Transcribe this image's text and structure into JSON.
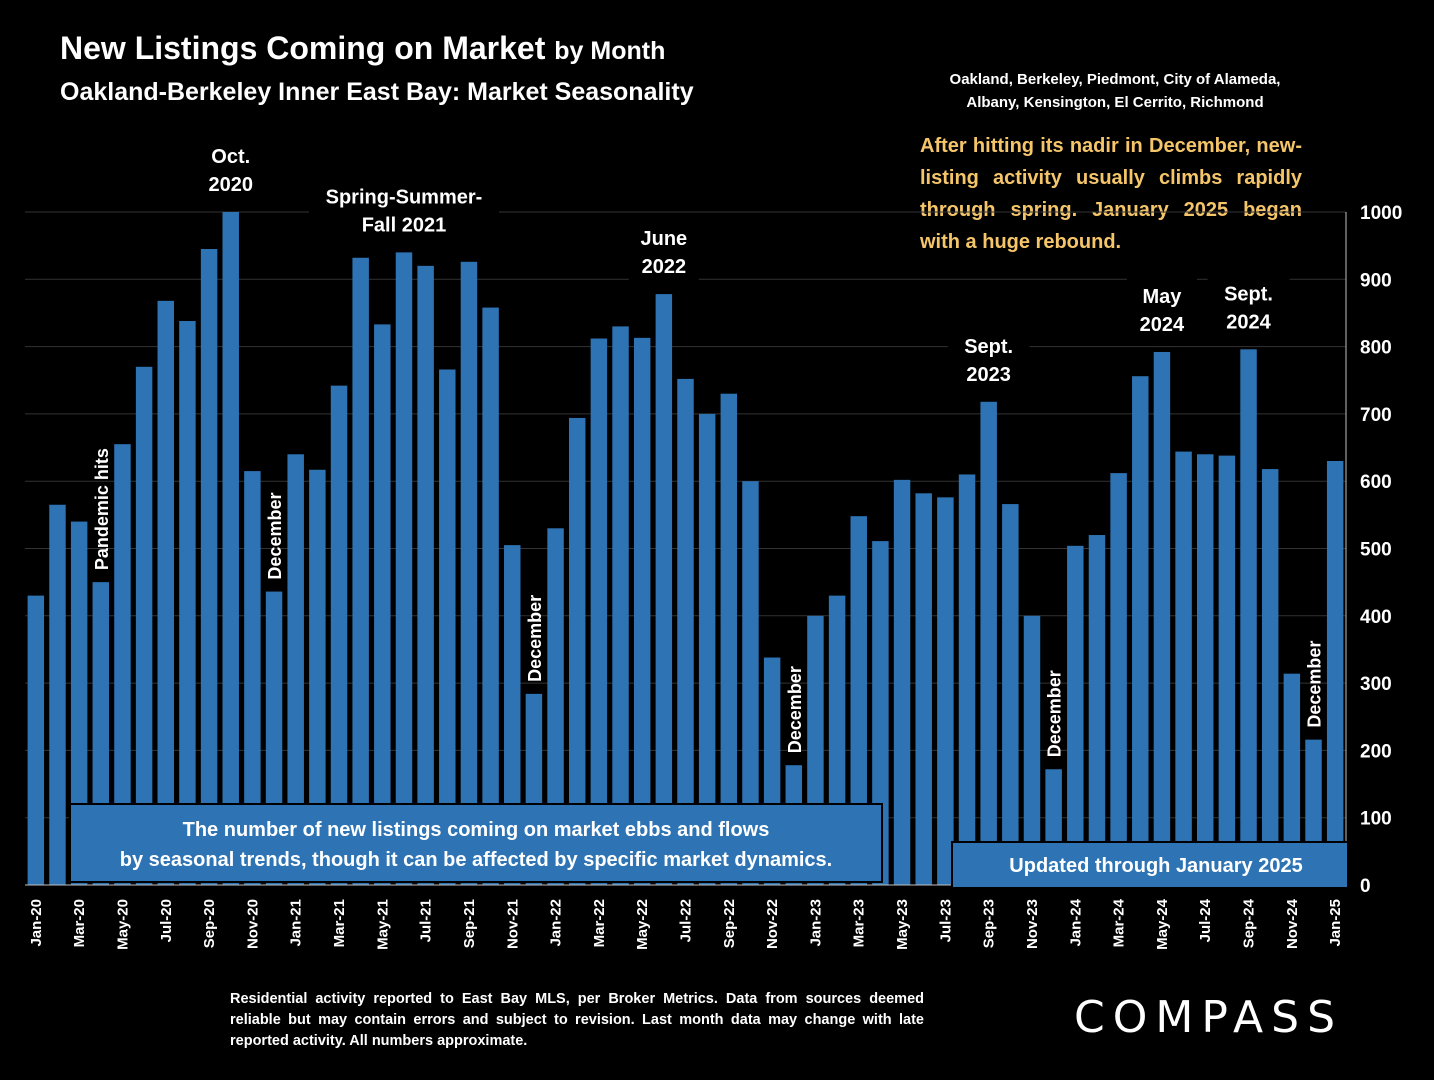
{
  "header": {
    "title": "New Listings Coming on Market",
    "title_suffix": "by Month",
    "subtitle": "Oakland-Berkeley Inner East Bay: Market Seasonality",
    "areas_line1": "Oakland, Berkeley, Piedmont, City of Alameda,",
    "areas_line2": "Albany, Kensington, El Cerrito, Richmond",
    "note": "After hitting its nadir in December, new-listing activity usually climbs rapidly through spring. January 2025 began with a huge rebound."
  },
  "colors": {
    "bar": "#2e74b5",
    "background": "#000000",
    "note": "#f5c56a",
    "grid": "#333333"
  },
  "chart_data": {
    "type": "bar",
    "categories": [
      "Jan-20",
      "Feb-20",
      "Mar-20",
      "Apr-20",
      "May-20",
      "Jun-20",
      "Jul-20",
      "Aug-20",
      "Sep-20",
      "Oct-20",
      "Nov-20",
      "Dec-20",
      "Jan-21",
      "Feb-21",
      "Mar-21",
      "Apr-21",
      "May-21",
      "Jun-21",
      "Jul-21",
      "Aug-21",
      "Sep-21",
      "Oct-21",
      "Nov-21",
      "Dec-21",
      "Jan-22",
      "Feb-22",
      "Mar-22",
      "Apr-22",
      "May-22",
      "Jun-22",
      "Jul-22",
      "Aug-22",
      "Sep-22",
      "Oct-22",
      "Nov-22",
      "Dec-22",
      "Jan-23",
      "Feb-23",
      "Mar-23",
      "Apr-23",
      "May-23",
      "Jun-23",
      "Jul-23",
      "Aug-23",
      "Sep-23",
      "Oct-23",
      "Nov-23",
      "Dec-23",
      "Jan-24",
      "Feb-24",
      "Mar-24",
      "Apr-24",
      "May-24",
      "Jun-24",
      "Jul-24",
      "Aug-24",
      "Sep-24",
      "Oct-24",
      "Nov-24",
      "Dec-24",
      "Jan-25"
    ],
    "x_tick_labels": [
      "Jan-20",
      "Mar-20",
      "May-20",
      "Jul-20",
      "Sep-20",
      "Nov-20",
      "Jan-21",
      "Mar-21",
      "May-21",
      "Jul-21",
      "Sep-21",
      "Nov-21",
      "Jan-22",
      "Mar-22",
      "May-22",
      "Jul-22",
      "Sep-22",
      "Nov-22",
      "Jan-23",
      "Mar-23",
      "May-23",
      "Jul-23",
      "Sep-23",
      "Nov-23",
      "Jan-24",
      "Mar-24",
      "May-24",
      "Jul-24",
      "Sep-24",
      "Nov-24",
      "Jan-25"
    ],
    "values": [
      430,
      565,
      540,
      450,
      655,
      770,
      868,
      838,
      945,
      1000,
      615,
      436,
      640,
      617,
      742,
      932,
      833,
      940,
      920,
      766,
      926,
      858,
      505,
      284,
      530,
      694,
      812,
      830,
      813,
      878,
      752,
      700,
      730,
      600,
      338,
      178,
      400,
      430,
      548,
      511,
      602,
      582,
      576,
      610,
      718,
      566,
      400,
      172,
      504,
      520,
      612,
      756,
      792,
      644,
      640,
      638,
      796,
      618,
      314,
      216,
      630
    ],
    "y_axis_side": "right",
    "ylim": [
      0,
      1000
    ],
    "yticks": [
      0,
      100,
      200,
      300,
      400,
      500,
      600,
      700,
      800,
      900,
      1000
    ],
    "grid": true,
    "annotations": [
      {
        "text": "Oct.\n2020",
        "index": 9,
        "style": "above"
      },
      {
        "text": "Spring-Summer-\nFall  2021",
        "index": 17,
        "style": "above"
      },
      {
        "text": "June\n2022",
        "index": 29,
        "style": "above"
      },
      {
        "text": "Sept.\n2023",
        "index": 44,
        "style": "above"
      },
      {
        "text": "May\n2024",
        "index": 52,
        "style": "above"
      },
      {
        "text": "Sept.\n2024",
        "index": 56,
        "style": "above"
      },
      {
        "text": "Pandemic hits",
        "index": 3,
        "style": "vertical"
      },
      {
        "text": "December",
        "index": 11,
        "style": "vertical"
      },
      {
        "text": "December",
        "index": 23,
        "style": "vertical"
      },
      {
        "text": "December",
        "index": 35,
        "style": "vertical"
      },
      {
        "text": "December",
        "index": 47,
        "style": "vertical"
      },
      {
        "text": "December",
        "index": 59,
        "style": "vertical"
      }
    ],
    "callout_boxes": [
      {
        "text": "The number of new listings coming on market ebbs and flows by seasonal trends, though it can be affected by specific market dynamics."
      },
      {
        "text": "Updated through January 2025"
      }
    ]
  },
  "footer": {
    "disclaimer": "Residential activity reported to East Bay MLS, per Broker Metrics. Data from sources deemed reliable but may contain errors and subject to revision. Last month data may change with late reported activity. All numbers approximate.",
    "logo": "COMPASS"
  }
}
